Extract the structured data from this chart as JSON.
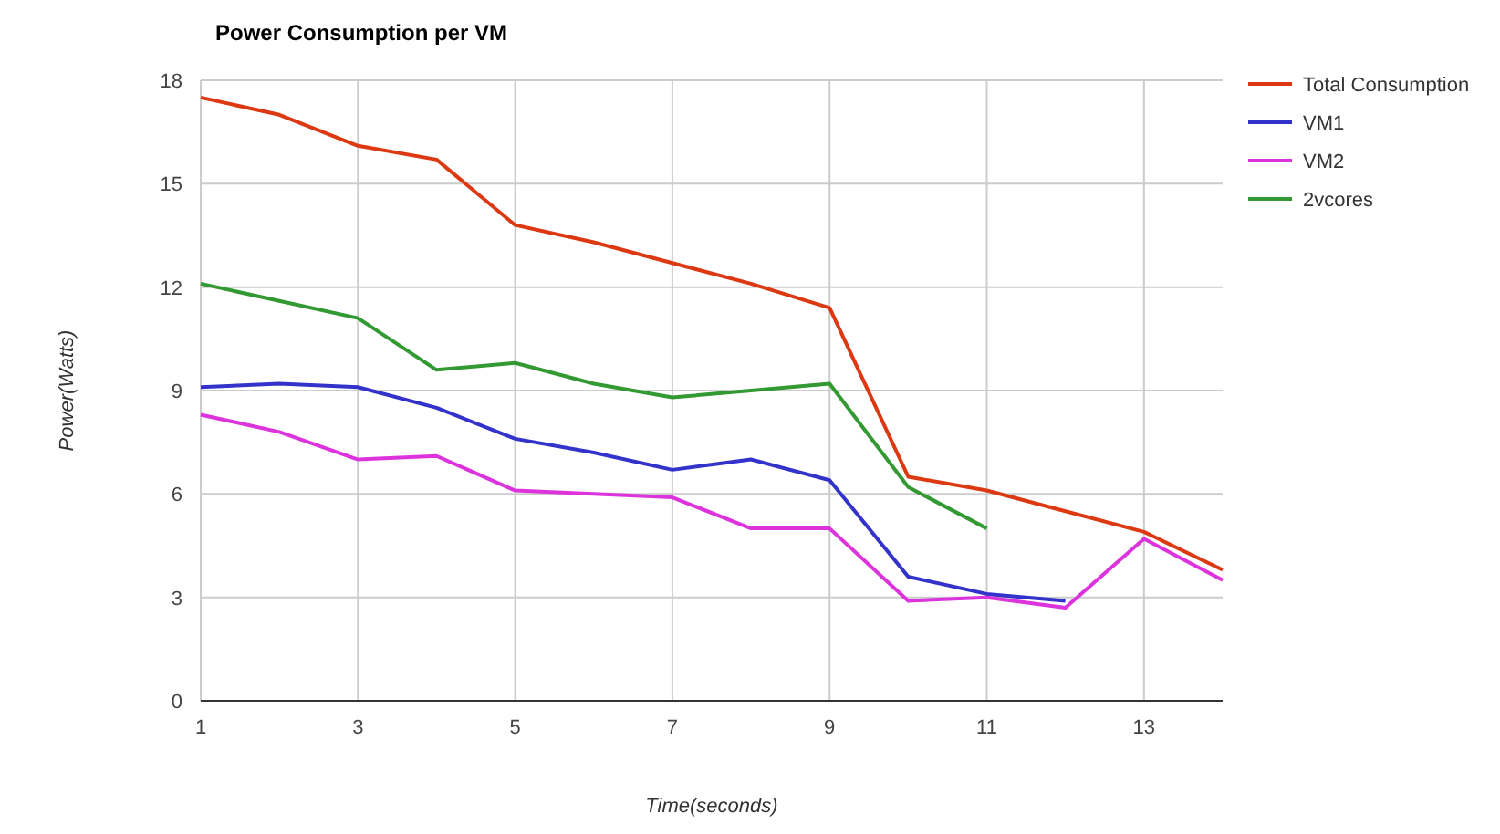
{
  "chart_data": {
    "type": "line",
    "title": "Power Consumption per VM",
    "xlabel": "Time(seconds)",
    "ylabel": "Power(Watts)",
    "x": [
      1,
      2,
      3,
      4,
      5,
      6,
      7,
      8,
      9,
      10,
      11,
      12,
      13,
      14
    ],
    "series": [
      {
        "name": "Total Consumption",
        "color": "#dc3912",
        "values": [
          17.5,
          17.0,
          16.1,
          15.7,
          13.8,
          13.3,
          12.7,
          12.1,
          11.4,
          6.5,
          6.1,
          5.5,
          4.9,
          3.8
        ]
      },
      {
        "name": "VM1",
        "color": "#3333cc",
        "values": [
          9.1,
          9.2,
          9.1,
          8.5,
          7.6,
          7.2,
          6.7,
          7.0,
          6.4,
          3.6,
          3.1,
          2.9,
          null,
          null
        ]
      },
      {
        "name": "VM2",
        "color": "#dd33dd",
        "values": [
          8.3,
          7.8,
          7.0,
          7.1,
          6.1,
          6.0,
          5.9,
          5.0,
          5.0,
          2.9,
          3.0,
          2.7,
          4.7,
          3.5
        ]
      },
      {
        "name": "2vcores",
        "color": "#339933",
        "values": [
          12.1,
          11.6,
          11.1,
          9.6,
          9.8,
          9.2,
          8.8,
          9.0,
          9.2,
          6.2,
          5.0,
          null,
          null,
          null
        ]
      }
    ],
    "xlim": [
      1,
      14
    ],
    "xticks": [
      1,
      3,
      5,
      7,
      9,
      11,
      13
    ],
    "ylim": [
      0,
      18
    ],
    "yticks": [
      0,
      3,
      6,
      9,
      12,
      15,
      18
    ],
    "grid": true,
    "legend": "right",
    "marker": "none",
    "line_style": "solid"
  }
}
